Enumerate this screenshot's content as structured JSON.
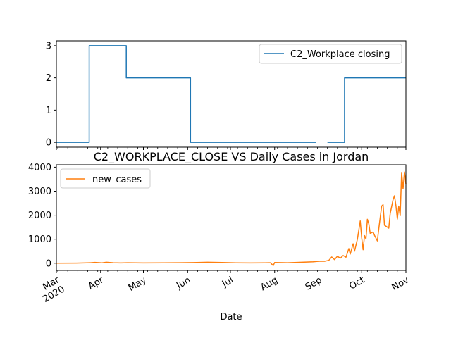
{
  "chart_data": [
    {
      "type": "line",
      "title": "",
      "xlabel": "",
      "ylabel": "",
      "xlim": [
        "2020-03-01",
        "2020-11-01"
      ],
      "ylim": [
        -0.15,
        3.15
      ],
      "yticks": [
        0,
        1,
        2,
        3
      ],
      "legend": {
        "position": "top-right"
      },
      "grid": false,
      "series": [
        {
          "name": "C2_Workplace closing",
          "color": "#1f77b4",
          "step_segments": [
            {
              "from": "2020-03-01",
              "to": "2020-03-24",
              "value": 0
            },
            {
              "from": "2020-03-24",
              "to": "2020-04-19",
              "value": 3
            },
            {
              "from": "2020-04-19",
              "to": "2020-06-03",
              "value": 2
            },
            {
              "from": "2020-06-03",
              "to": "2020-08-30",
              "value": 0
            },
            {
              "from": "2020-09-07",
              "to": "2020-09-19",
              "value": 0
            },
            {
              "from": "2020-09-19",
              "to": "2020-11-01",
              "value": 2
            }
          ]
        }
      ]
    },
    {
      "type": "line",
      "title": "C2_WORKPLACE_CLOSE VS Daily Cases in Jordan",
      "xlabel": "Date",
      "ylabel": "",
      "xlim": [
        "2020-03-01",
        "2020-11-01"
      ],
      "ylim": [
        -300,
        4100
      ],
      "yticks": [
        0,
        1000,
        2000,
        3000,
        4000
      ],
      "xtick_labels": [
        "Mar\n2020",
        "Apr",
        "May",
        "Jun",
        "Jul",
        "Aug",
        "Sep",
        "Oct",
        "Nov"
      ],
      "xtick_dates": [
        "2020-03-01",
        "2020-04-01",
        "2020-05-01",
        "2020-06-01",
        "2020-07-01",
        "2020-08-01",
        "2020-09-01",
        "2020-10-01",
        "2020-11-01"
      ],
      "legend": {
        "position": "top-left"
      },
      "grid": false,
      "series": [
        {
          "name": "new_cases",
          "color": "#ff7f0e",
          "points": [
            [
              "2020-03-01",
              0
            ],
            [
              "2020-03-15",
              5
            ],
            [
              "2020-03-25",
              20
            ],
            [
              "2020-03-28",
              35
            ],
            [
              "2020-04-02",
              15
            ],
            [
              "2020-04-05",
              40
            ],
            [
              "2020-04-10",
              20
            ],
            [
              "2020-04-15",
              10
            ],
            [
              "2020-04-20",
              20
            ],
            [
              "2020-05-01",
              10
            ],
            [
              "2020-05-15",
              15
            ],
            [
              "2020-05-25",
              20
            ],
            [
              "2020-06-05",
              25
            ],
            [
              "2020-06-15",
              40
            ],
            [
              "2020-06-25",
              30
            ],
            [
              "2020-07-05",
              15
            ],
            [
              "2020-07-15",
              10
            ],
            [
              "2020-07-25",
              15
            ],
            [
              "2020-07-29",
              20
            ],
            [
              "2020-07-31",
              -100
            ],
            [
              "2020-08-01",
              30
            ],
            [
              "2020-08-10",
              20
            ],
            [
              "2020-08-20",
              40
            ],
            [
              "2020-08-28",
              60
            ],
            [
              "2020-09-01",
              80
            ],
            [
              "2020-09-05",
              80
            ],
            [
              "2020-09-08",
              120
            ],
            [
              "2020-09-10",
              260
            ],
            [
              "2020-09-12",
              150
            ],
            [
              "2020-09-14",
              290
            ],
            [
              "2020-09-16",
              210
            ],
            [
              "2020-09-18",
              320
            ],
            [
              "2020-09-20",
              250
            ],
            [
              "2020-09-22",
              610
            ],
            [
              "2020-09-23",
              380
            ],
            [
              "2020-09-25",
              810
            ],
            [
              "2020-09-26",
              500
            ],
            [
              "2020-09-28",
              1000
            ],
            [
              "2020-09-30",
              1760
            ],
            [
              "2020-10-01",
              1060
            ],
            [
              "2020-10-02",
              560
            ],
            [
              "2020-10-03",
              1150
            ],
            [
              "2020-10-04",
              1010
            ],
            [
              "2020-10-05",
              1830
            ],
            [
              "2020-10-06",
              1640
            ],
            [
              "2020-10-07",
              1240
            ],
            [
              "2020-10-09",
              1300
            ],
            [
              "2020-10-10",
              1160
            ],
            [
              "2020-10-12",
              930
            ],
            [
              "2020-10-13",
              1440
            ],
            [
              "2020-10-15",
              2380
            ],
            [
              "2020-10-16",
              2440
            ],
            [
              "2020-10-17",
              1580
            ],
            [
              "2020-10-19",
              1500
            ],
            [
              "2020-10-20",
              1460
            ],
            [
              "2020-10-21",
              2070
            ],
            [
              "2020-10-23",
              2650
            ],
            [
              "2020-10-24",
              2810
            ],
            [
              "2020-10-25",
              2400
            ],
            [
              "2020-10-26",
              1840
            ],
            [
              "2020-10-27",
              2380
            ],
            [
              "2020-10-28",
              1980
            ],
            [
              "2020-10-29",
              3780
            ],
            [
              "2020-10-30",
              3100
            ],
            [
              "2020-10-31",
              3800
            ],
            [
              "2020-11-01",
              3300
            ]
          ]
        }
      ]
    }
  ]
}
